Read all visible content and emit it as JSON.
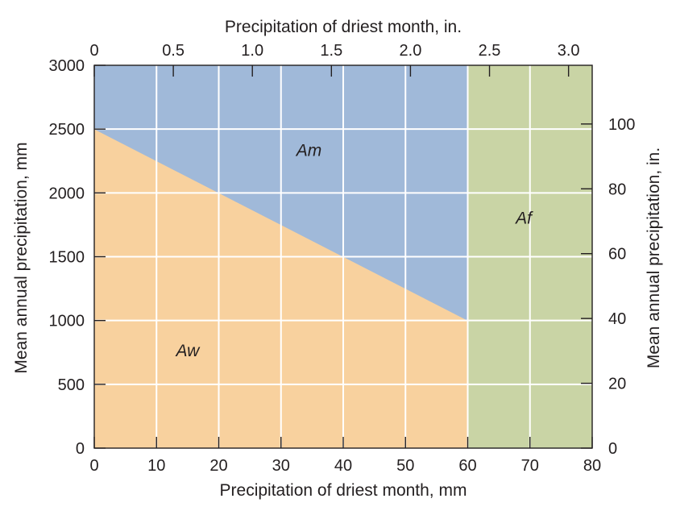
{
  "chart_data": {
    "type": "area",
    "xlabel": "Precipitation of driest month, mm",
    "x2label": "Precipitation of driest month, in.",
    "ylabel": "Mean annual precipitation, mm",
    "y2label": "Mean annual precipitation, in.",
    "xlim": [
      0,
      80
    ],
    "ylim": [
      0,
      3000
    ],
    "x_ticks": [
      "0",
      "10",
      "20",
      "30",
      "40",
      "50",
      "60",
      "70",
      "80"
    ],
    "x_tick_values": [
      0,
      10,
      20,
      30,
      40,
      50,
      60,
      70,
      80
    ],
    "x2_ticks": [
      "0",
      "0.5",
      "1.0",
      "1.5",
      "2.0",
      "2.5",
      "3.0"
    ],
    "x2_tick_values_in": [
      0,
      0.5,
      1.0,
      1.5,
      2.0,
      2.5,
      3.0
    ],
    "y_ticks": [
      "0",
      "500",
      "1000",
      "1500",
      "2000",
      "2500",
      "3000"
    ],
    "y_tick_values": [
      0,
      500,
      1000,
      1500,
      2000,
      2500,
      3000
    ],
    "y2_ticks": [
      "0",
      "20",
      "40",
      "60",
      "80",
      "100"
    ],
    "y2_tick_values_in": [
      0,
      20,
      40,
      60,
      80,
      100
    ],
    "mm_per_inch": 25.4,
    "grid": true,
    "regions": [
      {
        "name": "Aw",
        "color": "#f8d19e",
        "label_x": 15,
        "label_y": 720,
        "polygon": [
          [
            0,
            0
          ],
          [
            60,
            0
          ],
          [
            60,
            1000
          ],
          [
            0,
            2500
          ]
        ]
      },
      {
        "name": "Am",
        "color": "#a0b9d9",
        "label_x": 34.5,
        "label_y": 2290,
        "polygon": [
          [
            0,
            2500
          ],
          [
            60,
            1000
          ],
          [
            60,
            3000
          ],
          [
            0,
            3000
          ]
        ]
      },
      {
        "name": "Af",
        "color": "#c9d4a5",
        "label_x": 69,
        "label_y": 1760,
        "polygon": [
          [
            60,
            0
          ],
          [
            80,
            0
          ],
          [
            80,
            3000
          ],
          [
            60,
            3000
          ]
        ]
      }
    ]
  }
}
